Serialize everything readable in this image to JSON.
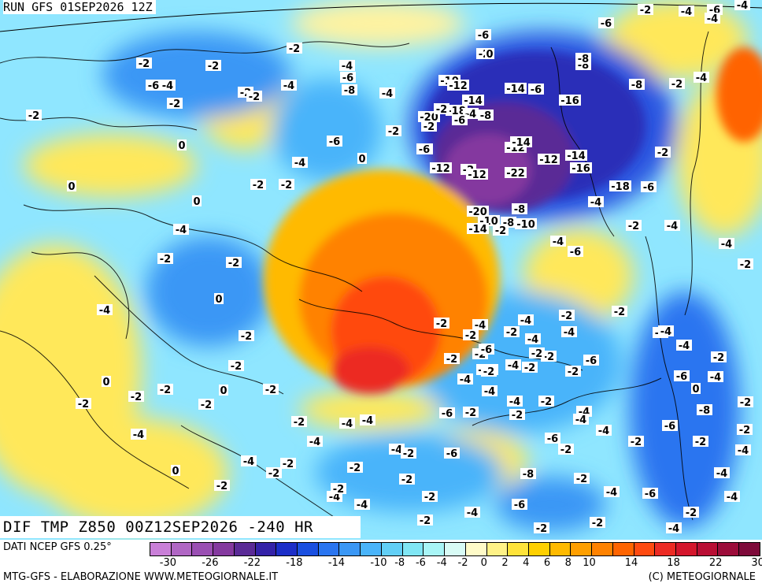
{
  "run_title": "RUN GFS 01SEP2026 12Z",
  "field_title": "DIF TMP Z850 00Z12SEP2026 -240 HR",
  "source": "DATI NCEP GFS 0.25°",
  "credit_left": "MTG-GFS - ELABORAZIONE WWW.METEOGIORNALE.IT",
  "credit_right": "(C) METEOGIORNALE",
  "legend": {
    "colors": [
      "#c97fd8",
      "#b066c4",
      "#9a4fb3",
      "#84399f",
      "#5a2a96",
      "#3422a8",
      "#1c2ec8",
      "#1a4fe0",
      "#2a75f0",
      "#3a97f5",
      "#4ab4fa",
      "#62cff6",
      "#80e6f4",
      "#a8f5f6",
      "#d8fbf5",
      "#fffbc8",
      "#fff287",
      "#ffe33a",
      "#ffd000",
      "#ffba00",
      "#ff9f00",
      "#ff8200",
      "#ff6400",
      "#ff4a10",
      "#ec2b24",
      "#d4162c",
      "#b90e34",
      "#9c0c3a",
      "#7e0a3a"
    ],
    "ticks": [
      "-30",
      "-26",
      "-22",
      "-18",
      "-14",
      "-10",
      "-8",
      "-6",
      "-4",
      "-2",
      "0",
      "2",
      "4",
      "6",
      "8",
      "10",
      "14",
      "18",
      "22",
      "30"
    ]
  },
  "map": {
    "background_color": "#8fe6ff",
    "anomaly_label_color": "#000000",
    "anomaly_labels": [
      {
        "text": "-2"
      },
      {
        "text": "-6"
      },
      {
        "text": "-4"
      },
      {
        "text": "-2"
      },
      {
        "text": "-2"
      },
      {
        "text": "-2"
      },
      {
        "text": "-2"
      },
      {
        "text": "-4"
      },
      {
        "text": "-8"
      },
      {
        "text": "-4"
      },
      {
        "text": "-6"
      },
      {
        "text": "0"
      },
      {
        "text": "-2"
      },
      {
        "text": "-2"
      },
      {
        "text": "-4"
      },
      {
        "text": "-6"
      },
      {
        "text": "-4"
      },
      {
        "text": "0"
      },
      {
        "text": "-2"
      },
      {
        "text": "-2"
      },
      {
        "text": "0"
      },
      {
        "text": "0"
      },
      {
        "text": "-6"
      },
      {
        "text": "-2"
      },
      {
        "text": "-2"
      },
      {
        "text": "-4"
      },
      {
        "text": "0"
      },
      {
        "text": "-2"
      },
      {
        "text": "-4"
      },
      {
        "text": "-2"
      },
      {
        "text": "0"
      },
      {
        "text": "-2"
      },
      {
        "text": "-4"
      },
      {
        "text": "-2"
      },
      {
        "text": "0"
      },
      {
        "text": "-2"
      },
      {
        "text": "-2"
      },
      {
        "text": "0"
      },
      {
        "text": "-2"
      },
      {
        "text": "-2"
      },
      {
        "text": "-2"
      },
      {
        "text": "-4"
      },
      {
        "text": "0"
      },
      {
        "text": "-4"
      },
      {
        "text": "-2"
      },
      {
        "text": "-2"
      },
      {
        "text": "-2"
      },
      {
        "text": "-2"
      },
      {
        "text": "-4"
      },
      {
        "text": "-2"
      },
      {
        "text": "-2"
      },
      {
        "text": "-4"
      },
      {
        "text": "-4"
      },
      {
        "text": "-4"
      },
      {
        "text": "-2"
      },
      {
        "text": "-6"
      },
      {
        "text": "-6"
      },
      {
        "text": "-2"
      },
      {
        "text": "-10"
      },
      {
        "text": "-4"
      },
      {
        "text": "-2"
      },
      {
        "text": "-4"
      },
      {
        "text": "-8"
      },
      {
        "text": "-10"
      },
      {
        "text": "-12"
      },
      {
        "text": "-14"
      },
      {
        "text": "-16"
      },
      {
        "text": "-14"
      },
      {
        "text": "-18"
      },
      {
        "text": "-20"
      },
      {
        "text": "-8"
      },
      {
        "text": "-12"
      },
      {
        "text": "-2"
      },
      {
        "text": "-12"
      },
      {
        "text": "-14"
      },
      {
        "text": "-12"
      },
      {
        "text": "-14"
      },
      {
        "text": "-16"
      },
      {
        "text": "-6"
      },
      {
        "text": "-12"
      },
      {
        "text": "-22"
      },
      {
        "text": "-18"
      },
      {
        "text": "-6"
      },
      {
        "text": "-4"
      },
      {
        "text": "-8"
      },
      {
        "text": "-20"
      },
      {
        "text": "-10"
      },
      {
        "text": "-8"
      },
      {
        "text": "-10"
      },
      {
        "text": "-14"
      },
      {
        "text": "-2"
      },
      {
        "text": "-4"
      },
      {
        "text": "-6"
      },
      {
        "text": "-2"
      },
      {
        "text": "-4"
      },
      {
        "text": "-2"
      },
      {
        "text": "-4"
      },
      {
        "text": "-2"
      },
      {
        "text": "-6"
      },
      {
        "text": "-4"
      },
      {
        "text": "-2"
      },
      {
        "text": "-6"
      },
      {
        "text": "-4"
      },
      {
        "text": "0"
      },
      {
        "text": "-2"
      },
      {
        "text": "-4"
      },
      {
        "text": "-2"
      },
      {
        "text": "-4"
      },
      {
        "text": "-6"
      },
      {
        "text": "-4"
      },
      {
        "text": "-4"
      },
      {
        "text": "-6"
      },
      {
        "text": "-8"
      },
      {
        "text": "-6"
      },
      {
        "text": "-8"
      },
      {
        "text": "-4"
      },
      {
        "text": "-6"
      },
      {
        "text": "-2"
      },
      {
        "text": "-2"
      },
      {
        "text": "-2"
      },
      {
        "text": "-2"
      },
      {
        "text": "-6"
      },
      {
        "text": "-4"
      },
      {
        "text": "-2"
      },
      {
        "text": "-4"
      },
      {
        "text": "-2"
      },
      {
        "text": "-4"
      },
      {
        "text": "-6"
      },
      {
        "text": "-4"
      },
      {
        "text": "-2"
      },
      {
        "text": "-8"
      },
      {
        "text": "-4"
      },
      {
        "text": "-2"
      },
      {
        "text": "-2"
      },
      {
        "text": "-6"
      },
      {
        "text": "-4"
      },
      {
        "text": "-4"
      },
      {
        "text": "-2"
      },
      {
        "text": "-4"
      },
      {
        "text": "-2"
      },
      {
        "text": "-4"
      },
      {
        "text": "-2"
      },
      {
        "text": "-4"
      },
      {
        "text": "-2"
      },
      {
        "text": "-2"
      },
      {
        "text": "-2"
      },
      {
        "text": "-2"
      },
      {
        "text": "-2"
      },
      {
        "text": "-6"
      },
      {
        "text": "-2"
      },
      {
        "text": "-4"
      },
      {
        "text": "-2"
      },
      {
        "text": "-4"
      },
      {
        "text": "-2"
      },
      {
        "text": "-4"
      },
      {
        "text": "-2"
      },
      {
        "text": "-6"
      },
      {
        "text": "-2"
      },
      {
        "text": "-4"
      },
      {
        "text": "-4"
      },
      {
        "text": "-2"
      },
      {
        "text": "-8"
      },
      {
        "text": "-2"
      },
      {
        "text": "-6"
      },
      {
        "text": "-4"
      },
      {
        "text": "-2"
      },
      {
        "text": "-4"
      },
      {
        "text": "-2"
      },
      {
        "text": "-4"
      },
      {
        "text": "-2"
      }
    ]
  }
}
